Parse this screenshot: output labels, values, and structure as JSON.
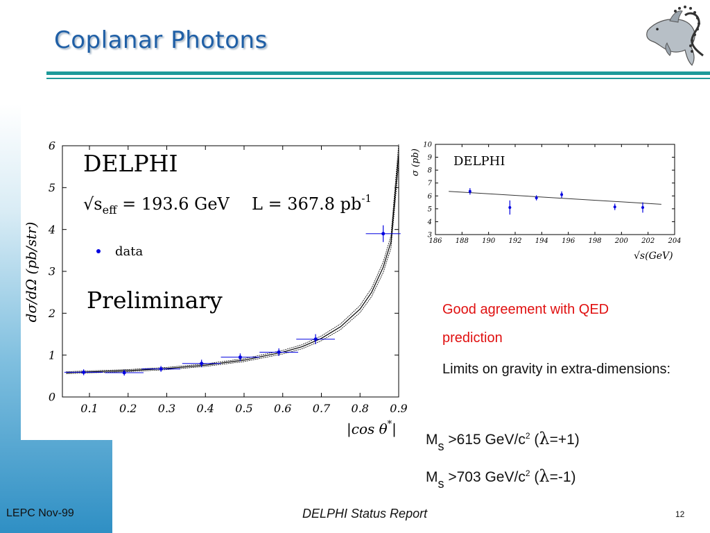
{
  "slide": {
    "title": "Coplanar Photons",
    "footer_left": "LEPC Nov-99",
    "footer_center": "DELPHI Status Report",
    "page_number": "12",
    "logo_icon": "dolphin-logo-icon"
  },
  "colors": {
    "title": "#1f5fa6",
    "rule": "#1d9a9a",
    "highlight_text": "#e01010",
    "data_points": "#0000e0"
  },
  "text": {
    "red_line": "Good agreement with QED prediction",
    "black_line": "Limits on gravity in extra-dimensions:",
    "limit1": {
      "m": "M",
      "sub": "s",
      "mid": " >615 GeV/c",
      "sup": "2",
      "open": " (",
      "lam": "λ",
      "close": "=+1)"
    },
    "limit2": {
      "m": "M",
      "sub": "s",
      "mid": " >703 GeV/c",
      "sup": "2",
      "open": " (",
      "lam": "λ",
      "close": "=-1)"
    }
  },
  "chart_data": [
    {
      "type": "scatter",
      "experiment_label": "DELPHI",
      "energy_label": "√s",
      "energy_sub": "eff",
      "energy_value": " =  193.6 GeV",
      "lumi_label": "L = 367.8 pb",
      "lumi_sup": "-1",
      "legend_label": "data",
      "status_label": "Preliminary",
      "xlabel": "|cos θ*|",
      "ylabel": "dσ/dΩ (pb/str)",
      "xlim": [
        0.03,
        0.9
      ],
      "ylim": [
        0,
        6
      ],
      "xticks": [
        "0.1",
        "0.2",
        "0.3",
        "0.4",
        "0.5",
        "0.6",
        "0.7",
        "0.8",
        "0.9"
      ],
      "yticks": [
        "0",
        "1",
        "2",
        "3",
        "4",
        "5",
        "6"
      ],
      "points": [
        {
          "x": 0.085,
          "y": 0.59,
          "xerr": 0.05,
          "yerr": 0.07
        },
        {
          "x": 0.19,
          "y": 0.58,
          "xerr": 0.05,
          "yerr": 0.07
        },
        {
          "x": 0.285,
          "y": 0.67,
          "xerr": 0.05,
          "yerr": 0.07
        },
        {
          "x": 0.39,
          "y": 0.8,
          "xerr": 0.05,
          "yerr": 0.09
        },
        {
          "x": 0.49,
          "y": 0.95,
          "xerr": 0.05,
          "yerr": 0.09
        },
        {
          "x": 0.59,
          "y": 1.07,
          "xerr": 0.05,
          "yerr": 0.09
        },
        {
          "x": 0.685,
          "y": 1.38,
          "xerr": 0.05,
          "yerr": 0.12
        },
        {
          "x": 0.86,
          "y": 3.9,
          "xerr": 0.045,
          "yerr": 0.2
        }
      ],
      "qed_curve": {
        "x": [
          0.04,
          0.1,
          0.2,
          0.3,
          0.4,
          0.5,
          0.6,
          0.65,
          0.7,
          0.75,
          0.8,
          0.83,
          0.86,
          0.88,
          0.9
        ],
        "y": [
          0.58,
          0.6,
          0.63,
          0.68,
          0.76,
          0.88,
          1.07,
          1.2,
          1.4,
          1.68,
          2.1,
          2.5,
          3.1,
          3.7,
          5.8
        ]
      }
    },
    {
      "type": "scatter",
      "experiment_label": "DELPHI",
      "xlabel": "√s(GeV)",
      "ylabel": "σ (pb)",
      "xlim": [
        186,
        204
      ],
      "ylim": [
        3,
        10
      ],
      "xticks": [
        "186",
        "188",
        "190",
        "192",
        "194",
        "196",
        "198",
        "200",
        "202",
        "204"
      ],
      "yticks": [
        "3",
        "4",
        "5",
        "6",
        "7",
        "8",
        "9",
        "10"
      ],
      "points": [
        {
          "x": 188.6,
          "y": 6.35,
          "yerr": 0.25
        },
        {
          "x": 191.6,
          "y": 5.1,
          "yerr": 0.55
        },
        {
          "x": 193.6,
          "y": 5.85,
          "yerr": 0.2
        },
        {
          "x": 195.5,
          "y": 6.1,
          "yerr": 0.25
        },
        {
          "x": 199.5,
          "y": 5.15,
          "yerr": 0.25
        },
        {
          "x": 201.6,
          "y": 5.1,
          "yerr": 0.4
        }
      ],
      "fit_line": {
        "x": [
          187,
          203
        ],
        "y": [
          6.35,
          5.35
        ]
      }
    }
  ]
}
